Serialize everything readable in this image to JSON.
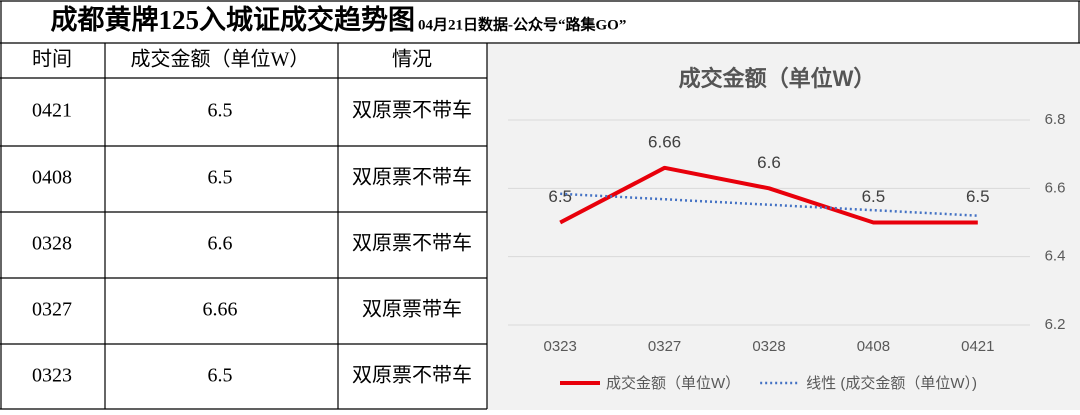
{
  "header": {
    "title": "成都黄牌125入城证成交趋势图",
    "subtitle": "04月21日数据-公众号“路集GO”"
  },
  "table": {
    "headers": [
      "时间",
      "成交金额（单位W）",
      "情况"
    ],
    "rows": [
      [
        "0421",
        "6.5",
        "双原票不带车"
      ],
      [
        "0408",
        "6.5",
        "双原票不带车"
      ],
      [
        "0328",
        "6.6",
        "双原票不带车"
      ],
      [
        "0327",
        "6.66",
        "双原票带车"
      ],
      [
        "0323",
        "6.5",
        "双原票不带车"
      ]
    ]
  },
  "chart_data": {
    "type": "line",
    "title": "成交金额（单位W）",
    "categories": [
      "0323",
      "0327",
      "0328",
      "0408",
      "0421"
    ],
    "series": [
      {
        "name": "成交金额（单位W）",
        "color": "#e8000b",
        "values": [
          6.5,
          6.66,
          6.6,
          6.5,
          6.5
        ],
        "data_labels": true
      },
      {
        "name": "线性 (成交金额（单位W）)",
        "color": "#4472c4",
        "values": [
          6.584,
          6.568,
          6.552,
          6.536,
          6.52
        ],
        "dashed": true
      }
    ],
    "ylim": [
      6.2,
      6.8
    ],
    "yticks": [
      6.2,
      6.4,
      6.6,
      6.8
    ],
    "grid": true,
    "legend": "bottom"
  }
}
